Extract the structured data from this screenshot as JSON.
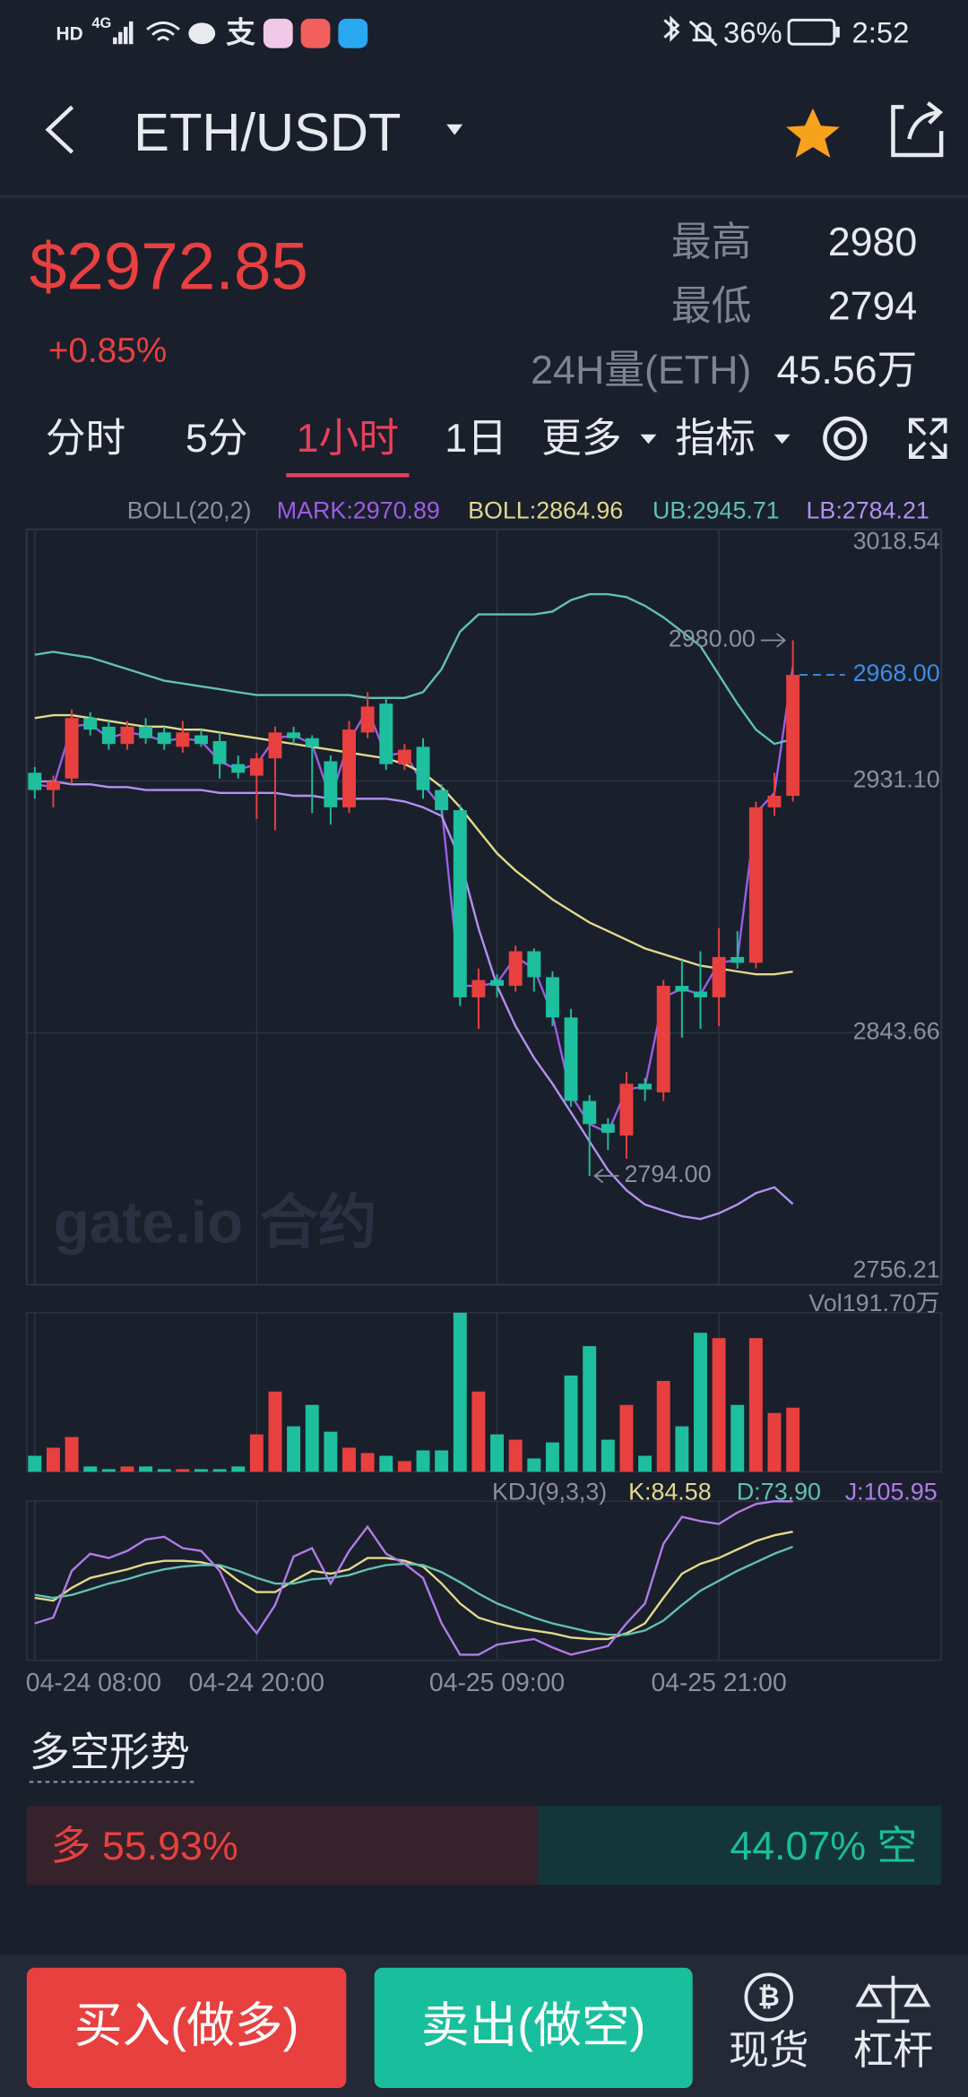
{
  "status_bar": {
    "badges": [
      "HD",
      "4G",
      "支"
    ],
    "battery": "36%",
    "time": "2:52"
  },
  "header": {
    "pair": "ETH/USDT"
  },
  "ticker": {
    "price": "$2972.85",
    "change": "+0.85%",
    "stats": [
      {
        "label": "最高",
        "value": "2980"
      },
      {
        "label": "最低",
        "value": "2794"
      },
      {
        "label": "24H量(ETH)",
        "value": "45.56万"
      }
    ]
  },
  "tabs": [
    "分时",
    "5分",
    "1小时",
    "1日",
    "更多",
    "指标"
  ],
  "active_tab": 2,
  "chart_data": {
    "type": "candlestick",
    "indicator": "BOLL(20,2)",
    "categories": [
      "04-24 08:00",
      null,
      null,
      null,
      null,
      null,
      null,
      null,
      null,
      null,
      null,
      null,
      "04-24 20:00",
      null,
      null,
      null,
      null,
      null,
      null,
      null,
      null,
      null,
      null,
      null,
      null,
      "04-25 09:00",
      null,
      null,
      null,
      null,
      null,
      null,
      null,
      null,
      null,
      null,
      null,
      "04-25 21:00",
      null,
      null,
      null,
      null
    ],
    "ylim": [
      2756.21,
      3018.54
    ],
    "yticks": [
      3018.54,
      {
        "value": 2931.1,
        "label": "2931.10"
      },
      2843.66,
      2756.21
    ],
    "grid": true,
    "up_color": "#e8403f",
    "down_color": "#1ebf9e",
    "open": [
      2934,
      2928,
      2932,
      2953,
      2950,
      2944,
      2950,
      2948,
      2943,
      2947,
      2945,
      2937,
      2933,
      2939,
      2948,
      2946,
      2938,
      2922,
      2948,
      2958,
      2937,
      2943,
      2928,
      2921,
      2856,
      2862,
      2860,
      2872,
      2863,
      2849,
      2820,
      2812,
      2808,
      2826,
      2823,
      2860,
      2858,
      2856,
      2870,
      2868,
      2922,
      2926
    ],
    "close": [
      2928,
      2931,
      2953,
      2949,
      2944,
      2950,
      2946,
      2944,
      2948,
      2944,
      2937,
      2934,
      2939,
      2948,
      2946,
      2943,
      2922,
      2949,
      2957,
      2937,
      2942,
      2928,
      2921,
      2856,
      2862,
      2860,
      2872,
      2863,
      2849,
      2820,
      2812,
      2809,
      2826,
      2824,
      2860,
      2858,
      2856,
      2870,
      2868,
      2922,
      2926,
      2968
    ],
    "high": [
      2936,
      2933,
      2956,
      2955,
      2952,
      2952,
      2953,
      2950,
      2952,
      2949,
      2948,
      2940,
      2941,
      2950,
      2950,
      2947,
      2940,
      2952,
      2962,
      2960,
      2944,
      2946,
      2930,
      2923,
      2866,
      2864,
      2874,
      2873,
      2865,
      2852,
      2822,
      2814,
      2830,
      2828,
      2862,
      2869,
      2872,
      2880,
      2879,
      2924,
      2934,
      2980
    ],
    "low": [
      2925,
      2922,
      2930,
      2947,
      2942,
      2942,
      2944,
      2942,
      2941,
      2943,
      2932,
      2932,
      2918,
      2914,
      2944,
      2920,
      2916,
      2920,
      2946,
      2935,
      2935,
      2925,
      2919,
      2853,
      2845,
      2856,
      2858,
      2858,
      2846,
      2818,
      2794,
      2803,
      2800,
      2820,
      2820,
      2842,
      2845,
      2846,
      2866,
      2866,
      2919,
      2924
    ],
    "lines": [
      {
        "label": "MARK:2970.89",
        "color": "#9b5de5",
        "values": [
          2930,
          2929,
          2950,
          2951,
          2946,
          2948,
          2947,
          2945,
          2946,
          2945,
          2938,
          2935,
          2937,
          2946,
          2947,
          2944,
          2925,
          2945,
          2956,
          2940,
          2941,
          2930,
          2922,
          2860,
          2860,
          2861,
          2870,
          2866,
          2850,
          2822,
          2812,
          2809,
          2824,
          2825,
          2856,
          2859,
          2857,
          2868,
          2869,
          2920,
          2927,
          2970.89
        ]
      },
      {
        "label": "BOLL:2864.96",
        "color": "#e3d98a",
        "values": [
          2953,
          2954,
          2954,
          2953,
          2952,
          2951,
          2950,
          2950,
          2949,
          2949,
          2948,
          2947,
          2946,
          2945,
          2944,
          2943,
          2942,
          2941,
          2940,
          2939,
          2937,
          2934,
          2929,
          2922,
          2914,
          2906,
          2900,
          2895,
          2890,
          2886,
          2882,
          2879,
          2876,
          2873,
          2871,
          2869,
          2867,
          2866,
          2865,
          2864,
          2864,
          2864.96
        ]
      },
      {
        "label": "UB:2945.71",
        "color": "#5fc2b0",
        "values": [
          2975,
          2976,
          2975,
          2974,
          2972,
          2970,
          2968,
          2966,
          2965,
          2964,
          2963,
          2962,
          2961,
          2961,
          2961,
          2961,
          2961,
          2961,
          2960,
          2960,
          2960,
          2962,
          2970,
          2983,
          2989,
          2989,
          2989,
          2989,
          2990,
          2994,
          2996,
          2996,
          2995,
          2992,
          2988,
          2983,
          2978,
          2968,
          2958,
          2949,
          2944,
          2945.71
        ]
      },
      {
        "label": "LB:2784.21",
        "color": "#b391f0",
        "values": [
          2931,
          2931,
          2930,
          2930,
          2929,
          2929,
          2928,
          2928,
          2928,
          2928,
          2927,
          2927,
          2927,
          2927,
          2926,
          2926,
          2925,
          2925,
          2925,
          2925,
          2924,
          2922,
          2919,
          2904,
          2880,
          2860,
          2846,
          2835,
          2826,
          2816,
          2806,
          2796,
          2789,
          2784,
          2782,
          2780,
          2779,
          2781,
          2784,
          2788,
          2790,
          2784.21
        ]
      }
    ],
    "last_price": {
      "value": 2968,
      "label": "2968.00"
    },
    "annotations": [
      {
        "value": 2980,
        "label": "2980.00"
      },
      {
        "value": 2794,
        "label": "2794.00"
      }
    ],
    "watermark": "gate.io 合约",
    "volume": {
      "label": "Vol191.70万",
      "ylim": [
        0,
        191.7
      ],
      "values": [
        19.3,
        29,
        41.9,
        6.4,
        3.2,
        6.4,
        6.4,
        3.2,
        3.2,
        3.2,
        3.2,
        6.4,
        45.1,
        96.7,
        54.8,
        80.6,
        48.3,
        29,
        22.6,
        19.3,
        12.9,
        25.8,
        25.8,
        191.7,
        96.7,
        45.1,
        38.7,
        16.1,
        35.4,
        116,
        151.4,
        38.7,
        80.6,
        19.3,
        109.5,
        54.8,
        167.5,
        161.1,
        80.6,
        161.1,
        70.9,
        77.3
      ]
    },
    "kdj": {
      "label": "KDJ(9,3,3)",
      "ylim": [
        -6,
        106
      ],
      "lines": [
        {
          "label": "K:84.58",
          "color": "#e3d98a",
          "values": [
            38,
            36,
            45,
            52,
            55,
            58,
            62,
            64,
            64,
            63,
            60,
            50,
            42,
            42,
            50,
            57,
            55,
            58,
            66,
            66,
            64,
            60,
            48,
            34,
            24,
            20,
            17,
            15,
            13,
            10,
            9,
            9,
            13,
            20,
            38,
            55,
            62,
            66,
            72,
            78,
            82,
            84.58
          ]
        },
        {
          "label": "D:73.90",
          "color": "#5fc2b0",
          "values": [
            40,
            38,
            40,
            44,
            48,
            51,
            55,
            58,
            60,
            61,
            61,
            57,
            52,
            48,
            48,
            51,
            52,
            54,
            58,
            61,
            62,
            61,
            56,
            49,
            41,
            34,
            29,
            24,
            20,
            17,
            14,
            12,
            12,
            15,
            22,
            33,
            43,
            50,
            57,
            63,
            69,
            73.9
          ]
        },
        {
          "label": "J:105.95",
          "color": "#b07ce8",
          "values": [
            20,
            24,
            57,
            69,
            66,
            71,
            79,
            81,
            73,
            71,
            57,
            29,
            13,
            33,
            67,
            73,
            48,
            71,
            88,
            69,
            62,
            52,
            20,
            -2,
            -2,
            5,
            7,
            9,
            3,
            -2,
            1,
            4,
            20,
            34,
            76,
            95,
            92,
            90,
            98,
            104,
            106,
            105.95
          ]
        }
      ]
    }
  },
  "long_short": {
    "title": "多空形势",
    "long": {
      "label": "多 55.93%",
      "value": 55.93
    },
    "short": {
      "label": "44.07% 空",
      "value": 44.07
    }
  },
  "actions": {
    "buy": "买入(做多)",
    "sell": "卖出(做空)",
    "spot": "现货",
    "margin": "杠杆"
  }
}
